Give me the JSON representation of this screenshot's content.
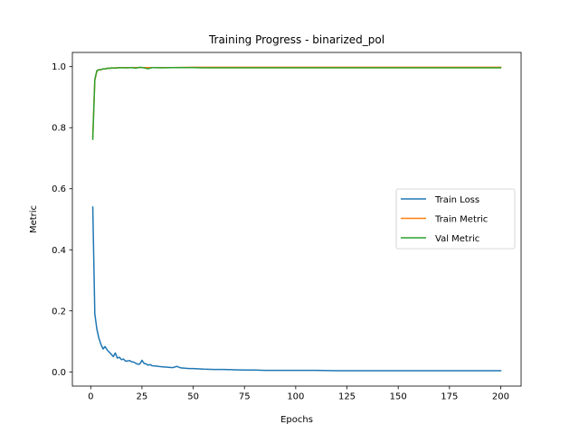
{
  "chart_data": {
    "type": "line",
    "title": "Training Progress - binarized_pol",
    "xlabel": "Epochs",
    "ylabel": "Metric",
    "xlim": [
      -8.95,
      209.95
    ],
    "ylim": [
      -0.0465,
      1.0465
    ],
    "xticks": [
      0,
      25,
      50,
      75,
      100,
      125,
      150,
      175,
      200
    ],
    "yticks": [
      0.0,
      0.2,
      0.4,
      0.6,
      0.8,
      1.0
    ],
    "ytick_labels": [
      "0.0",
      "0.2",
      "0.4",
      "0.6",
      "0.8",
      "1.0"
    ],
    "grid": false,
    "legend_position": "center-right",
    "series": [
      {
        "name": "Train Loss",
        "color": "#1f77b4",
        "x": [
          1,
          2,
          3,
          4,
          5,
          6,
          7,
          8,
          9,
          10,
          11,
          12,
          13,
          14,
          15,
          16,
          17,
          18,
          19,
          20,
          21,
          22,
          23,
          24,
          25,
          26,
          27,
          28,
          29,
          30,
          32,
          34,
          36,
          38,
          40,
          42,
          44,
          46,
          48,
          50,
          55,
          60,
          65,
          70,
          75,
          80,
          85,
          90,
          95,
          100,
          110,
          120,
          130,
          140,
          150,
          160,
          170,
          180,
          190,
          200
        ],
        "y": [
          0.54,
          0.19,
          0.14,
          0.11,
          0.09,
          0.075,
          0.083,
          0.072,
          0.065,
          0.058,
          0.05,
          0.062,
          0.045,
          0.048,
          0.04,
          0.042,
          0.035,
          0.036,
          0.037,
          0.033,
          0.032,
          0.028,
          0.025,
          0.026,
          0.038,
          0.028,
          0.026,
          0.022,
          0.024,
          0.02,
          0.019,
          0.017,
          0.016,
          0.015,
          0.014,
          0.018,
          0.013,
          0.012,
          0.011,
          0.011,
          0.009,
          0.008,
          0.008,
          0.007,
          0.006,
          0.006,
          0.005,
          0.005,
          0.005,
          0.005,
          0.005,
          0.004,
          0.004,
          0.004,
          0.004,
          0.004,
          0.004,
          0.004,
          0.004,
          0.004
        ]
      },
      {
        "name": "Train Metric",
        "color": "#ff7f0e",
        "x": [
          1,
          2,
          3,
          4,
          5,
          6,
          7,
          8,
          9,
          10,
          12,
          15,
          20,
          25,
          30,
          40,
          50,
          60,
          70,
          80,
          90,
          100,
          120,
          140,
          160,
          180,
          200
        ],
        "y": [
          0.77,
          0.955,
          0.985,
          0.99,
          0.99,
          0.992,
          0.993,
          0.994,
          0.995,
          0.995,
          0.996,
          0.997,
          0.997,
          0.997,
          0.997,
          0.997,
          0.998,
          0.998,
          0.998,
          0.998,
          0.998,
          0.998,
          0.998,
          0.998,
          0.998,
          0.998,
          0.998
        ]
      },
      {
        "name": "Val Metric",
        "color": "#2ca02c",
        "x": [
          1,
          2,
          3,
          4,
          5,
          6,
          7,
          8,
          9,
          10,
          12,
          14,
          16,
          18,
          20,
          22,
          24,
          26,
          28,
          30,
          35,
          40,
          45,
          50,
          55,
          60,
          70,
          80,
          90,
          100,
          120,
          140,
          160,
          180,
          200
        ],
        "y": [
          0.762,
          0.958,
          0.987,
          0.99,
          0.99,
          0.993,
          0.992,
          0.995,
          0.994,
          0.996,
          0.995,
          0.997,
          0.996,
          0.996,
          0.997,
          0.995,
          0.998,
          0.996,
          0.993,
          0.997,
          0.996,
          0.997,
          0.997,
          0.997,
          0.996,
          0.996,
          0.996,
          0.996,
          0.996,
          0.996,
          0.996,
          0.996,
          0.996,
          0.996,
          0.996
        ]
      }
    ]
  }
}
